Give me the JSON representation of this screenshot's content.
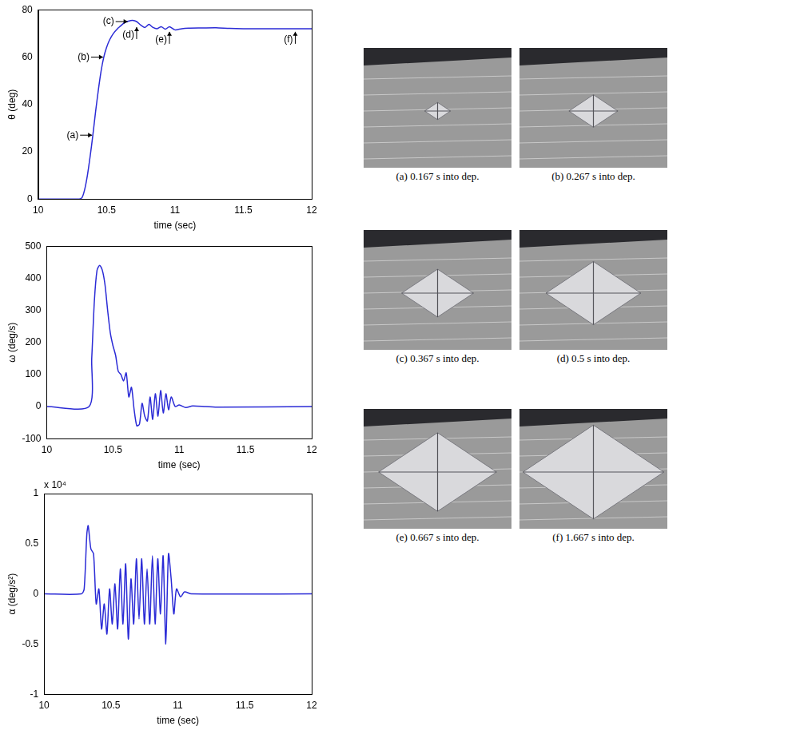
{
  "chart_data": [
    {
      "type": "line",
      "color": "#2b2bd6",
      "grid": false,
      "x_label": "time (sec)",
      "y_label": "θ (deg)",
      "xlim": [
        10,
        12
      ],
      "xticks": [
        10,
        10.5,
        11,
        11.5,
        12
      ],
      "ylim": [
        0,
        80
      ],
      "yticks": [
        0,
        20,
        40,
        60,
        80
      ],
      "x": [
        10,
        10.3,
        10.32,
        10.34,
        10.36,
        10.38,
        10.4,
        10.42,
        10.44,
        10.46,
        10.48,
        10.5,
        10.52,
        10.55,
        10.58,
        10.6,
        10.63,
        10.66,
        10.69,
        10.72,
        10.75,
        10.78,
        10.81,
        10.84,
        10.87,
        10.9,
        10.93,
        10.96,
        11,
        11.05,
        11.1,
        11.2,
        11.3,
        11.4,
        11.5,
        12
      ],
      "values": [
        0,
        0,
        0.5,
        4,
        10,
        18,
        27,
        37,
        46,
        54,
        60,
        64,
        67,
        70,
        72,
        73,
        74.5,
        75.2,
        75.5,
        75,
        73.5,
        72.5,
        73.8,
        72.5,
        72,
        72.8,
        71.8,
        72.8,
        71.5,
        72,
        72.2,
        72.3,
        72.4,
        72.1,
        72,
        72
      ],
      "annotations": [
        {
          "text": "(a)",
          "x": 10.4,
          "y": 27
        },
        {
          "text": "(b)",
          "x": 10.48,
          "y": 60
        },
        {
          "text": "(c)",
          "x": 10.66,
          "y": 75
        },
        {
          "text": "(d)",
          "x": 10.72,
          "y": 73
        },
        {
          "text": "(e)",
          "x": 10.96,
          "y": 71
        },
        {
          "text": "(f)",
          "x": 11.88,
          "y": 71
        }
      ]
    },
    {
      "type": "line",
      "color": "#2b2bd6",
      "grid": false,
      "x_label": "time (sec)",
      "y_label": "ω (deg/s)",
      "xlim": [
        10,
        12
      ],
      "xticks": [
        10,
        10.5,
        11,
        11.5,
        12
      ],
      "ylim": [
        -100,
        500
      ],
      "yticks": [
        -100,
        0,
        100,
        200,
        300,
        400,
        500
      ],
      "x": [
        10,
        10.32,
        10.34,
        10.36,
        10.38,
        10.4,
        10.42,
        10.44,
        10.46,
        10.48,
        10.5,
        10.52,
        10.54,
        10.56,
        10.58,
        10.6,
        10.62,
        10.64,
        10.66,
        10.68,
        10.7,
        10.72,
        10.74,
        10.76,
        10.78,
        10.8,
        10.82,
        10.84,
        10.86,
        10.88,
        10.9,
        10.92,
        10.94,
        10.97,
        11,
        11.05,
        11.1,
        11.2,
        11.3,
        12
      ],
      "values": [
        0,
        0,
        150,
        330,
        425,
        440,
        425,
        380,
        300,
        230,
        190,
        160,
        110,
        100,
        80,
        105,
        30,
        60,
        -10,
        -60,
        -55,
        10,
        -30,
        -45,
        30,
        -40,
        40,
        -30,
        50,
        -20,
        40,
        -10,
        30,
        0,
        5,
        -3,
        2,
        0,
        -2,
        0
      ]
    },
    {
      "type": "line",
      "color": "#2b2bd6",
      "grid": false,
      "x_label": "time (sec)",
      "y_label": "α (deg/s²)",
      "y_multiplier": "x 10⁴",
      "xlim": [
        10,
        12
      ],
      "xticks": [
        10,
        10.5,
        11,
        11.5,
        12
      ],
      "ylim": [
        -1,
        1
      ],
      "yticks": [
        -1,
        -0.5,
        0,
        0.5,
        1
      ],
      "x": [
        10,
        10.28,
        10.3,
        10.32,
        10.33,
        10.35,
        10.37,
        10.39,
        10.41,
        10.43,
        10.45,
        10.47,
        10.49,
        10.51,
        10.53,
        10.55,
        10.57,
        10.59,
        10.61,
        10.63,
        10.65,
        10.67,
        10.69,
        10.71,
        10.73,
        10.75,
        10.77,
        10.79,
        10.81,
        10.83,
        10.85,
        10.87,
        10.89,
        10.91,
        10.93,
        10.95,
        10.97,
        10.99,
        11.02,
        11.05,
        11.1,
        12
      ],
      "values": [
        0,
        0,
        0.05,
        0.6,
        0.68,
        0.45,
        0.4,
        -0.1,
        0.05,
        -0.35,
        -0.1,
        -0.4,
        0.05,
        -0.3,
        0.1,
        -0.35,
        0.25,
        -0.3,
        0.3,
        -0.45,
        0.15,
        -0.3,
        0.35,
        -0.25,
        0.35,
        -0.3,
        0.25,
        -0.3,
        0.38,
        -0.3,
        0.35,
        -0.2,
        0.38,
        -0.5,
        0.4,
        0.15,
        -0.2,
        0.05,
        -0.03,
        0.02,
        0,
        0
      ]
    }
  ],
  "photos": [
    {
      "caption": "(a) 0.167 s into dep."
    },
    {
      "caption": "(b) 0.267 s into dep."
    },
    {
      "caption": "(c) 0.367 s into dep."
    },
    {
      "caption": "(d) 0.5 s into dep."
    },
    {
      "caption": "(e) 0.667 s into dep."
    },
    {
      "caption": "(f) 1.667 s into dep."
    }
  ]
}
